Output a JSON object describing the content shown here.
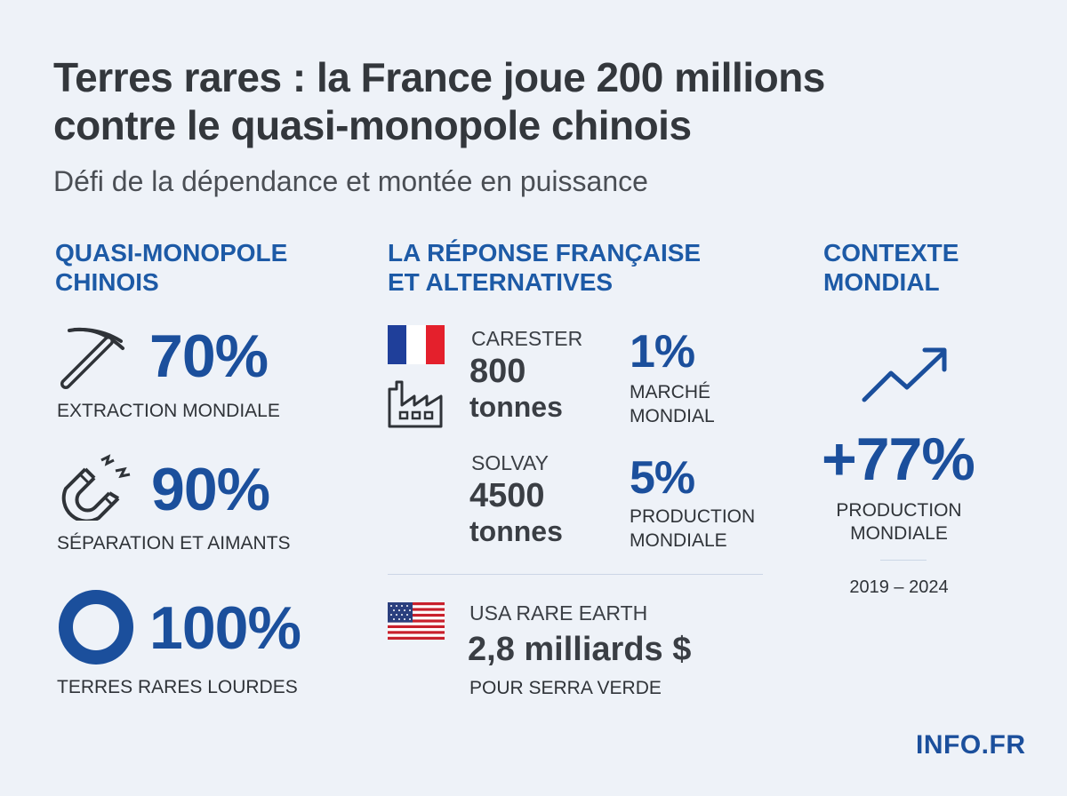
{
  "header": {
    "title_line1": "Terres rares : la France joue 200 millions",
    "title_line2": "contre le quasi-monopole chinois",
    "subtitle": "Défi de la dépendance et montée en puissance"
  },
  "col1": {
    "heading_line1": "QUASI-MONOPOLE",
    "heading_line2": "CHINOIS",
    "stats": [
      {
        "icon": "pickaxe-icon",
        "value": "70%",
        "label": "EXTRACTION MONDIALE"
      },
      {
        "icon": "magnet-icon",
        "value": "90%",
        "label": "SÉPARATION ET AIMANTS"
      },
      {
        "icon": "ring-icon",
        "value": "100%",
        "label": "TERRES RARES LOURDES"
      }
    ]
  },
  "col2": {
    "heading_line1": "LA RÉPONSE FRANÇAISE",
    "heading_line2": "ET ALTERNATIVES",
    "carester": {
      "name": "CARESTER",
      "amount": "800",
      "unit": "tonnes"
    },
    "market": {
      "value": "1%",
      "label_line1": "MARCHÉ",
      "label_line2": "MONDIAL"
    },
    "solvay": {
      "name": "SOLVAY",
      "amount": "4500",
      "unit": "tonnes"
    },
    "production": {
      "value": "5%",
      "label_line1": "PRODUCTION",
      "label_line2": "MONDIALE"
    },
    "usa": {
      "name": "USA RARE EARTH",
      "amount": "2,8 milliards $",
      "note": "POUR SERRA VERDE"
    }
  },
  "col3": {
    "heading_line1": "CONTEXTE",
    "heading_line2": "MONDIAL",
    "value": "+77%",
    "label_line1": "PRODUCTION",
    "label_line2": "MONDIALE",
    "period": "2019 – 2024"
  },
  "footer": {
    "logo": "INFO.FR"
  },
  "colors": {
    "accent_blue": "#1b4f9c",
    "heading_blue": "#1d5aa6",
    "background": "#eef2f8",
    "text_dark": "#33373c",
    "france_blue": "#1f3f9a",
    "france_red": "#e4202c"
  }
}
